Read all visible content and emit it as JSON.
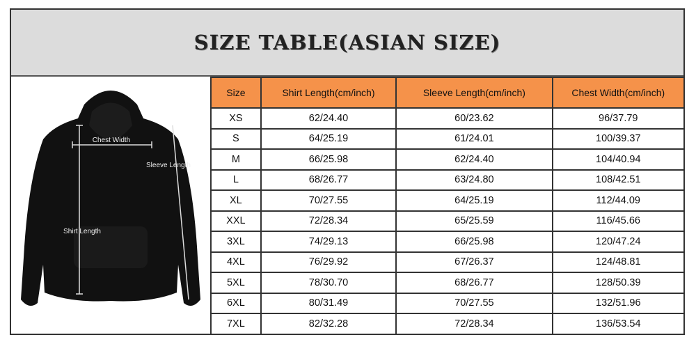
{
  "title": "SIZE TABLE(ASIAN SIZE)",
  "image": {
    "labels": {
      "chest": "Chest Width",
      "sleeve": "Sleeve Length",
      "shirt": "Shirt Length"
    },
    "garment_color": "#111111"
  },
  "colors": {
    "header_bg": "#f5924a",
    "title_bg": "#dcdcdc"
  },
  "table": {
    "headers": [
      "Size",
      "Shirt Length(cm/inch)",
      "Sleeve Length(cm/inch)",
      "Chest Width(cm/inch)"
    ],
    "rows": [
      [
        "XS",
        "62/24.40",
        "60/23.62",
        "96/37.79"
      ],
      [
        "S",
        "64/25.19",
        "61/24.01",
        "100/39.37"
      ],
      [
        "M",
        "66/25.98",
        "62/24.40",
        "104/40.94"
      ],
      [
        "L",
        "68/26.77",
        "63/24.80",
        "108/42.51"
      ],
      [
        "XL",
        "70/27.55",
        "64/25.19",
        "112/44.09"
      ],
      [
        "XXL",
        "72/28.34",
        "65/25.59",
        "116/45.66"
      ],
      [
        "3XL",
        "74/29.13",
        "66/25.98",
        "120/47.24"
      ],
      [
        "4XL",
        "76/29.92",
        "67/26.37",
        "124/48.81"
      ],
      [
        "5XL",
        "78/30.70",
        "68/26.77",
        "128/50.39"
      ],
      [
        "6XL",
        "80/31.49",
        "70/27.55",
        "132/51.96"
      ],
      [
        "7XL",
        "82/32.28",
        "72/28.34",
        "136/53.54"
      ]
    ]
  }
}
